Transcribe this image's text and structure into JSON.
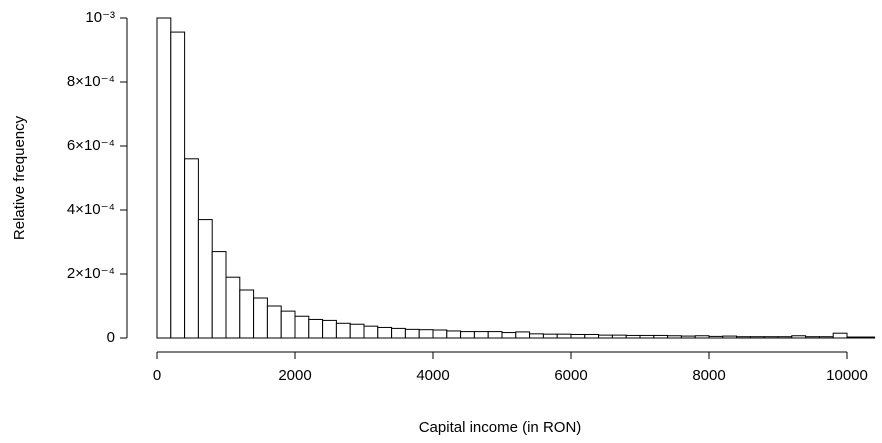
{
  "chart_data": {
    "type": "histogram",
    "x_label": "Capital income (in RON)",
    "y_label": "Relative frequency",
    "bins": [
      0,
      200,
      400,
      600,
      800,
      1000,
      1200,
      1400,
      1600,
      1800,
      2000,
      2200,
      2400,
      2600,
      2800,
      3000,
      3200,
      3400,
      3600,
      3800,
      4000,
      4200,
      4400,
      4600,
      4800,
      5000,
      5200,
      5400,
      5600,
      5800,
      6000,
      6200,
      6400,
      6600,
      6800,
      7000,
      7200,
      7400,
      7600,
      7800,
      8000,
      8200,
      8400,
      8600,
      8800,
      9000,
      9200,
      9400,
      9600,
      9800,
      10000,
      10200,
      10400
    ],
    "values": [
      0.001,
      0.000956,
      0.00056,
      0.00037,
      0.00027,
      0.00019,
      0.00015,
      0.000125,
      0.0001,
      8.4e-05,
      6.8e-05,
      5.8e-05,
      5.5e-05,
      4.6e-05,
      4.3e-05,
      3.7e-05,
      3.3e-05,
      3e-05,
      2.7e-05,
      2.6e-05,
      2.5e-05,
      2.2e-05,
      2e-05,
      2e-05,
      2e-05,
      1.7e-05,
      1.9e-05,
      1.3e-05,
      1.2e-05,
      1.2e-05,
      1.1e-05,
      1.1e-05,
      9e-06,
      9e-06,
      8e-06,
      8e-06,
      8e-06,
      7e-06,
      6e-06,
      7e-06,
      5e-06,
      6e-06,
      4e-06,
      4e-06,
      4e-06,
      4e-06,
      7e-06,
      4e-06,
      4e-06,
      1.5e-05,
      3e-06,
      3e-06
    ],
    "color": "#ffffff",
    "xlim": [
      0,
      10400
    ],
    "xticks": [
      0,
      2000,
      4000,
      6000,
      8000,
      10000
    ],
    "ylim": [
      0,
      0.001
    ],
    "yticks": [
      0,
      {
        "value": 0.0002,
        "label": "2×10⁻⁴"
      },
      {
        "value": 0.0004,
        "label": "4×10⁻⁴"
      },
      {
        "value": 0.0006,
        "label": "6×10⁻⁴"
      },
      {
        "value": 0.0008,
        "label": "8×10⁻⁴"
      },
      {
        "value": 0.001,
        "label": "10⁻³"
      }
    ]
  }
}
